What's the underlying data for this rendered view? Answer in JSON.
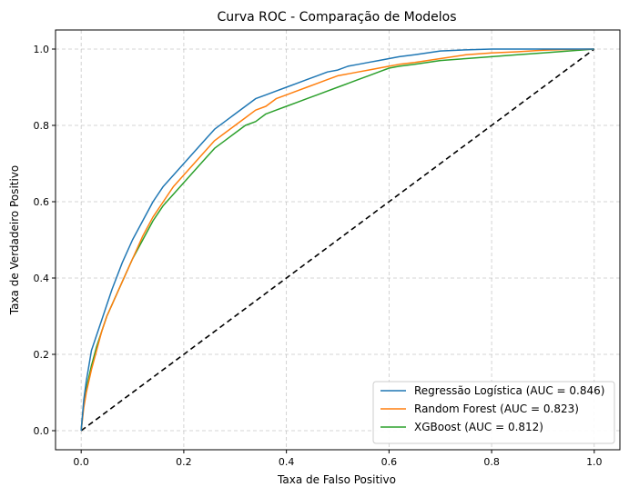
{
  "chart_data": {
    "type": "line",
    "title": "Curva ROC - Comparação de Modelos",
    "xlabel": "Taxa de Falso Positivo",
    "ylabel": "Taxa de Verdadeiro Positivo",
    "xlim": [
      -0.05,
      1.05
    ],
    "ylim": [
      -0.05,
      1.05
    ],
    "xticks": [
      0.0,
      0.2,
      0.4,
      0.6,
      0.8,
      1.0
    ],
    "yticks": [
      0.0,
      0.2,
      0.4,
      0.6,
      0.8,
      1.0
    ],
    "xtick_labels": [
      "0.0",
      "0.2",
      "0.4",
      "0.6",
      "0.8",
      "1.0"
    ],
    "ytick_labels": [
      "0.0",
      "0.2",
      "0.4",
      "0.6",
      "0.8",
      "1.0"
    ],
    "grid": true,
    "legend_position": "lower-right",
    "series": [
      {
        "name": "Regressão Logística (AUC = 0.846)",
        "color": "#1f77b4",
        "x": [
          0.0,
          0.005,
          0.01,
          0.015,
          0.02,
          0.03,
          0.04,
          0.05,
          0.06,
          0.08,
          0.1,
          0.12,
          0.14,
          0.16,
          0.18,
          0.2,
          0.22,
          0.24,
          0.26,
          0.28,
          0.3,
          0.32,
          0.34,
          0.36,
          0.38,
          0.4,
          0.42,
          0.44,
          0.46,
          0.48,
          0.5,
          0.52,
          0.54,
          0.56,
          0.58,
          0.6,
          0.62,
          0.65,
          0.7,
          0.75,
          0.8,
          0.9,
          1.0
        ],
        "y": [
          0.0,
          0.08,
          0.13,
          0.17,
          0.21,
          0.25,
          0.29,
          0.33,
          0.37,
          0.44,
          0.5,
          0.55,
          0.6,
          0.64,
          0.67,
          0.7,
          0.73,
          0.76,
          0.79,
          0.81,
          0.83,
          0.85,
          0.87,
          0.88,
          0.89,
          0.9,
          0.91,
          0.92,
          0.93,
          0.94,
          0.945,
          0.955,
          0.96,
          0.965,
          0.97,
          0.975,
          0.98,
          0.985,
          0.995,
          0.998,
          1.0,
          1.0,
          1.0
        ]
      },
      {
        "name": "Random Forest (AUC = 0.823)",
        "color": "#ff7f0e",
        "x": [
          0.0,
          0.005,
          0.01,
          0.02,
          0.03,
          0.04,
          0.05,
          0.06,
          0.08,
          0.1,
          0.12,
          0.14,
          0.16,
          0.18,
          0.2,
          0.22,
          0.24,
          0.26,
          0.28,
          0.3,
          0.32,
          0.34,
          0.36,
          0.38,
          0.4,
          0.42,
          0.44,
          0.46,
          0.48,
          0.5,
          0.52,
          0.54,
          0.56,
          0.58,
          0.6,
          0.62,
          0.65,
          0.7,
          0.75,
          0.8,
          0.85,
          0.9,
          0.95,
          1.0
        ],
        "y": [
          0.0,
          0.06,
          0.1,
          0.16,
          0.21,
          0.26,
          0.3,
          0.33,
          0.39,
          0.45,
          0.51,
          0.56,
          0.6,
          0.64,
          0.67,
          0.7,
          0.73,
          0.76,
          0.78,
          0.8,
          0.82,
          0.84,
          0.85,
          0.87,
          0.88,
          0.89,
          0.9,
          0.91,
          0.92,
          0.93,
          0.935,
          0.94,
          0.945,
          0.95,
          0.955,
          0.96,
          0.965,
          0.975,
          0.985,
          0.99,
          0.993,
          0.997,
          0.999,
          1.0
        ]
      },
      {
        "name": "XGBoost (AUC = 0.812)",
        "color": "#2ca02c",
        "x": [
          0.0,
          0.005,
          0.01,
          0.02,
          0.03,
          0.04,
          0.05,
          0.06,
          0.08,
          0.1,
          0.12,
          0.14,
          0.16,
          0.18,
          0.2,
          0.22,
          0.24,
          0.26,
          0.28,
          0.3,
          0.32,
          0.34,
          0.36,
          0.38,
          0.4,
          0.42,
          0.44,
          0.46,
          0.48,
          0.5,
          0.52,
          0.54,
          0.56,
          0.58,
          0.6,
          0.62,
          0.65,
          0.7,
          0.75,
          0.8,
          0.85,
          0.9,
          0.95,
          1.0
        ],
        "y": [
          0.0,
          0.07,
          0.11,
          0.17,
          0.22,
          0.26,
          0.3,
          0.33,
          0.39,
          0.45,
          0.5,
          0.55,
          0.59,
          0.62,
          0.65,
          0.68,
          0.71,
          0.74,
          0.76,
          0.78,
          0.8,
          0.81,
          0.83,
          0.84,
          0.85,
          0.86,
          0.87,
          0.88,
          0.89,
          0.9,
          0.91,
          0.92,
          0.93,
          0.94,
          0.95,
          0.955,
          0.96,
          0.97,
          0.975,
          0.98,
          0.985,
          0.99,
          0.995,
          1.0
        ]
      },
      {
        "name": "",
        "color": "#000000",
        "dashed": true,
        "x": [
          0.0,
          1.0
        ],
        "y": [
          0.0,
          1.0
        ]
      }
    ]
  }
}
